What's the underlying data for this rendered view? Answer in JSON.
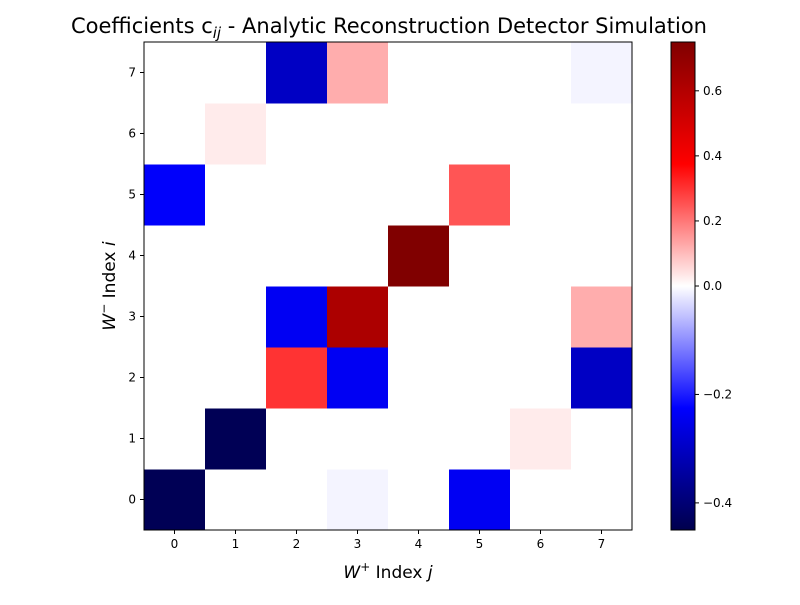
{
  "chart_data": {
    "type": "heatmap",
    "title": "Coefficients c",
    "title_subscript": "ij",
    "title_rest": " - Analytic Reconstruction Detector Simulation",
    "xlabel": {
      "base": "W",
      "superscript": "+",
      "rest": " Index ",
      "var": "j"
    },
    "ylabel": {
      "base": "W",
      "superscript": "−",
      "rest": " Index ",
      "var": "i"
    },
    "x_tick_labels": [
      "0",
      "1",
      "2",
      "3",
      "4",
      "5",
      "6",
      "7"
    ],
    "y_tick_labels": [
      "0",
      "1",
      "2",
      "3",
      "4",
      "5",
      "6",
      "7"
    ],
    "colormap": "seismic",
    "color_range": [
      -0.45,
      0.75
    ],
    "colorbar_ticks": [
      {
        "value": 0.6,
        "label": "0.6"
      },
      {
        "value": 0.4,
        "label": "0.4"
      },
      {
        "value": 0.2,
        "label": "0.2"
      },
      {
        "value": 0.0,
        "label": "0.0"
      },
      {
        "value": -0.2,
        "label": "−0.2"
      },
      {
        "value": -0.4,
        "label": "−0.4"
      }
    ],
    "rows_note": "values[i][j], i = W- index (row 0 at bottom), j = W+ index",
    "values": [
      [
        -0.44,
        0.0,
        0.0,
        -0.01,
        0.0,
        -0.24,
        0.0,
        0.0
      ],
      [
        0.0,
        -0.44,
        0.0,
        0.0,
        0.0,
        0.0,
        0.03,
        0.0
      ],
      [
        0.0,
        0.0,
        0.3,
        -0.24,
        0.0,
        0.0,
        0.0,
        -0.3
      ],
      [
        0.0,
        0.0,
        -0.24,
        0.62,
        0.0,
        0.0,
        0.0,
        0.12
      ],
      [
        0.0,
        0.0,
        0.0,
        0.0,
        0.75,
        0.0,
        0.0,
        0.0
      ],
      [
        -0.23,
        0.0,
        0.0,
        0.0,
        0.0,
        0.25,
        0.0,
        0.0
      ],
      [
        0.0,
        0.03,
        0.0,
        0.0,
        0.0,
        0.0,
        0.0,
        0.0
      ],
      [
        0.0,
        0.0,
        -0.3,
        0.12,
        0.0,
        0.0,
        0.0,
        -0.01
      ]
    ]
  }
}
